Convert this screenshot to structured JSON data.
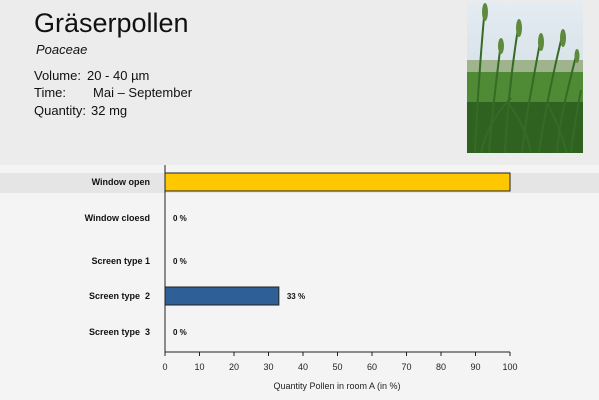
{
  "header": {
    "title": "Gräserpollen",
    "subtitle": "Poaceae",
    "volume_label": "Volume:",
    "volume_value": "20 - 40 µm",
    "time_label": "Time:",
    "time_value": "Mai – September",
    "quantity_label": "Quantity:",
    "quantity_value": "32 mg"
  },
  "chart_data": {
    "type": "bar",
    "orientation": "horizontal",
    "categories": [
      "Window open",
      "Window cloesd",
      "Screen type 1",
      "Screen type  2",
      "Screen type  3"
    ],
    "values": [
      100,
      0,
      0,
      33,
      0
    ],
    "value_labels": [
      "",
      "0 %",
      "0 %",
      "33 %",
      "0 %"
    ],
    "bar_colors": [
      "#ffc700",
      "#ffc700",
      "#ffc700",
      "#2e5f96",
      "#ffc700"
    ],
    "xlabel": "Quantity Pollen in room A (in %)",
    "xlim": [
      0,
      100
    ],
    "xticks": [
      0,
      10,
      20,
      30,
      40,
      50,
      60,
      70,
      80,
      90,
      100
    ],
    "grid": false,
    "legend": "none"
  }
}
